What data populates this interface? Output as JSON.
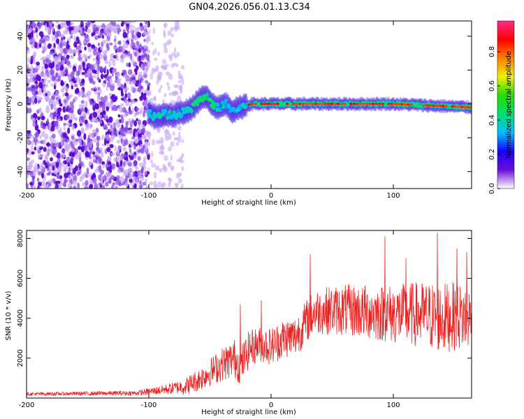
{
  "figure_title": "GN04.2026.056.01.13.C34",
  "chart_data": [
    {
      "type": "heatmap",
      "title": "GN04.2026.056.01.13.C34",
      "xlabel": "Height of straight line (km)",
      "ylabel": "Frequency (Hz)",
      "xlim": [
        -200,
        164
      ],
      "ylim": [
        -50,
        49
      ],
      "x_ticks": [
        -200,
        -100,
        0,
        100
      ],
      "x_tick_labels": [
        "-200",
        "-100",
        "0",
        "100"
      ],
      "y_ticks": [
        -40,
        -20,
        0,
        20,
        40
      ],
      "y_tick_labels": [
        "-40",
        "-20",
        "0",
        "20",
        "40"
      ],
      "colorbar": {
        "label": "Normalized spectral amplitude",
        "range": [
          0,
          0.98
        ],
        "ticks": [
          0.0,
          0.2,
          0.4,
          0.6,
          0.8
        ],
        "tick_labels": [
          "0.0",
          "0.2",
          "0.4",
          "0.6",
          "0.8"
        ],
        "colormap": [
          "#ffffff",
          "#6a0fd8",
          "#1a00ff",
          "#00c0ff",
          "#00e070",
          "#20e000",
          "#f0f000",
          "#ff8000",
          "#ff0000",
          "#ff2a8a"
        ]
      },
      "regions": [
        {
          "name": "noise",
          "x_range": [
            -200,
            -100
          ],
          "freq_range": [
            -50,
            49
          ],
          "amplitude": 0.05
        },
        {
          "name": "sparse-noise",
          "x_range": [
            -100,
            -72
          ],
          "freq_range": [
            -50,
            49
          ],
          "amplitude": 0.02
        },
        {
          "name": "signal-ridge",
          "x_range": [
            -100,
            164
          ],
          "amplitude_range": [
            0.3,
            0.95
          ]
        }
      ],
      "ridge_points": [
        {
          "x": -100,
          "freq": -5
        },
        {
          "x": -95,
          "freq": -8
        },
        {
          "x": -88,
          "freq": -6
        },
        {
          "x": -80,
          "freq": -7
        },
        {
          "x": -72,
          "freq": -5
        },
        {
          "x": -65,
          "freq": -3
        },
        {
          "x": -58,
          "freq": 3
        },
        {
          "x": -52,
          "freq": 4
        },
        {
          "x": -47,
          "freq": -1
        },
        {
          "x": -42,
          "freq": -2
        },
        {
          "x": -37,
          "freq": 0
        },
        {
          "x": -32,
          "freq": -4
        },
        {
          "x": -27,
          "freq": -3
        },
        {
          "x": -22,
          "freq": -1
        },
        {
          "x": -15,
          "freq": 0
        },
        {
          "x": 0,
          "freq": 0
        },
        {
          "x": 50,
          "freq": 0
        },
        {
          "x": 100,
          "freq": 0
        },
        {
          "x": 130,
          "freq": -1
        },
        {
          "x": 164,
          "freq": -2
        }
      ]
    },
    {
      "type": "line",
      "xlabel": "Height of straight line (km)",
      "ylabel": "SNR (10 * v/v)",
      "xlim": [
        -200,
        164
      ],
      "ylim": [
        0,
        8400
      ],
      "x_ticks": [
        -200,
        -100,
        0,
        100
      ],
      "x_tick_labels": [
        "-200",
        "-100",
        "0",
        "100"
      ],
      "y_ticks": [
        2000,
        4000,
        6000,
        8000
      ],
      "y_tick_labels": [
        "2000",
        "4000",
        "6000",
        "8000"
      ],
      "line_color": "#ee2020",
      "series": [
        {
          "name": "SNR",
          "trend_x": [
            -200,
            -110,
            -90,
            -70,
            -60,
            -50,
            -40,
            -30,
            -25,
            -18,
            -10,
            0,
            10,
            20,
            28,
            35,
            45,
            60,
            80,
            100,
            120,
            140,
            150,
            164
          ],
          "trend_y": [
            200,
            250,
            400,
            600,
            900,
            1300,
            1700,
            2000,
            1600,
            2500,
            2700,
            2600,
            3000,
            3100,
            3800,
            4300,
            4400,
            4400,
            4300,
            4200,
            4200,
            4000,
            4100,
            4000
          ],
          "spread_x": [
            -200,
            -110,
            -80,
            -50,
            -30,
            -10,
            10,
            30,
            60,
            100,
            140,
            164
          ],
          "spread_y": [
            80,
            120,
            300,
            700,
            1000,
            900,
            1000,
            1100,
            1300,
            1500,
            1800,
            1600
          ],
          "peaks": [
            {
              "x": -25,
              "y": 4700
            },
            {
              "x": -8,
              "y": 4900
            },
            {
              "x": 32,
              "y": 7200
            },
            {
              "x": 93,
              "y": 8100
            },
            {
              "x": 110,
              "y": 7000
            },
            {
              "x": 136,
              "y": 8300
            },
            {
              "x": 152,
              "y": 7500
            },
            {
              "x": 160,
              "y": 7300
            }
          ]
        }
      ]
    }
  ]
}
